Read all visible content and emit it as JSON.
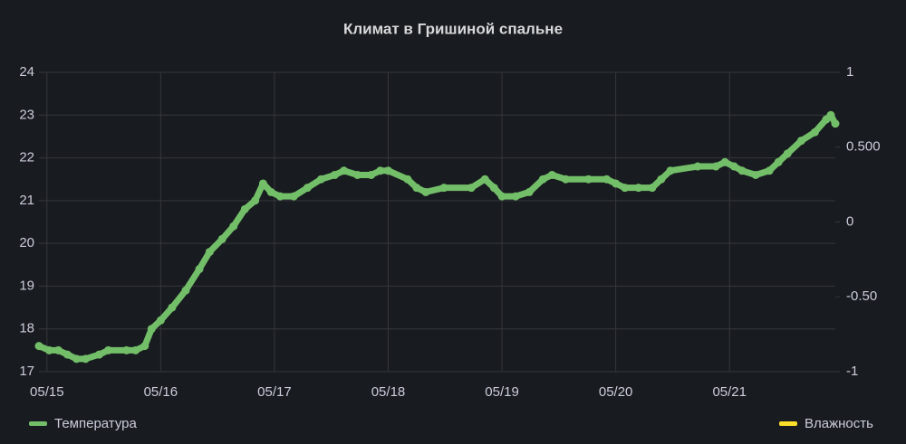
{
  "chart_data": {
    "type": "line",
    "title": "Климат в Гришиной спальне",
    "series": [
      {
        "name": "Температура",
        "color": "#73bf69",
        "x": [
          -0.07,
          0.02,
          0.1,
          0.18,
          0.26,
          0.34,
          0.46,
          0.54,
          0.7,
          0.78,
          0.86,
          0.92,
          1.0,
          1.1,
          1.22,
          1.34,
          1.43,
          1.54,
          1.64,
          1.74,
          1.83,
          1.9,
          1.97,
          2.05,
          2.17,
          2.29,
          2.41,
          2.53,
          2.61,
          2.73,
          2.85,
          2.93,
          3.0,
          3.17,
          3.25,
          3.33,
          3.49,
          3.73,
          3.85,
          3.93,
          4.0,
          4.12,
          4.24,
          4.36,
          4.44,
          4.56,
          4.76,
          4.92,
          5.0,
          5.08,
          5.2,
          5.32,
          5.4,
          5.48,
          5.72,
          5.88,
          5.96,
          6.04,
          6.11,
          6.23,
          6.35,
          6.43,
          6.51,
          6.63,
          6.75,
          6.85,
          6.89,
          6.93
        ],
        "values": [
          17.6,
          17.5,
          17.5,
          17.4,
          17.3,
          17.3,
          17.4,
          17.5,
          17.5,
          17.5,
          17.6,
          18.0,
          18.2,
          18.5,
          18.9,
          19.4,
          19.8,
          20.1,
          20.4,
          20.8,
          21.0,
          21.4,
          21.2,
          21.1,
          21.1,
          21.3,
          21.5,
          21.6,
          21.7,
          21.6,
          21.6,
          21.7,
          21.7,
          21.5,
          21.3,
          21.2,
          21.3,
          21.3,
          21.5,
          21.3,
          21.1,
          21.1,
          21.2,
          21.5,
          21.6,
          21.5,
          21.5,
          21.5,
          21.4,
          21.3,
          21.3,
          21.3,
          21.5,
          21.7,
          21.8,
          21.8,
          21.9,
          21.8,
          21.7,
          21.6,
          21.7,
          21.9,
          22.1,
          22.4,
          22.6,
          22.9,
          23.0,
          22.8
        ]
      },
      {
        "name": "Влажность",
        "color": "#fade2a",
        "axis": "y2",
        "x": [],
        "values": []
      }
    ],
    "xlim": [
      -0.07,
      6.93
    ],
    "xticks": [
      {
        "value": 0,
        "label": "05/15"
      },
      {
        "value": 1,
        "label": "05/16"
      },
      {
        "value": 2,
        "label": "05/17"
      },
      {
        "value": 3,
        "label": "05/18"
      },
      {
        "value": 4,
        "label": "05/19"
      },
      {
        "value": 5,
        "label": "05/20"
      },
      {
        "value": 6,
        "label": "05/21"
      }
    ],
    "ylim": [
      17,
      24
    ],
    "yticks": [
      17,
      18,
      19,
      20,
      21,
      22,
      23,
      24
    ],
    "y2lim": [
      -1,
      1
    ],
    "y2ticks": [
      -1,
      {
        "value": -0.5,
        "label": "-0.50"
      },
      0,
      {
        "value": 0.5,
        "label": "0.500"
      },
      1
    ],
    "grid": true
  }
}
